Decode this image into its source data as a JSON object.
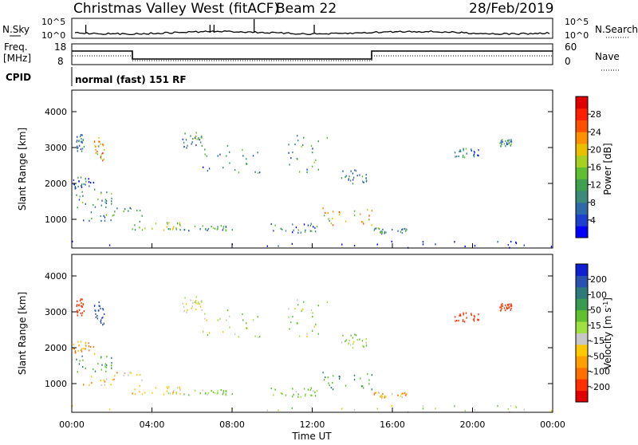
{
  "header": {
    "title": "Christmas Valley West (fitACF)",
    "beam": "Beam 22",
    "date": "28/Feb/2019"
  },
  "top_panels": {
    "nsky_label": "N.Sky",
    "nsky_ticks": [
      "10^5",
      "10^0"
    ],
    "nsearch_label": "N.Search",
    "nsearch_ticks": [
      "10^5",
      "10^0"
    ],
    "freq_label": "Freq.",
    "freq_unit": "[MHz]",
    "freq_ticks": [
      "18",
      "8"
    ],
    "nave_label": "Nave",
    "nave_ticks": [
      "60",
      "0"
    ],
    "cpid_label": "CPID",
    "cpid_value": "normal (fast) 151 RF"
  },
  "colors": {
    "power_scale": [
      "#0000ff",
      "#1f3fd0",
      "#2f6aa8",
      "#3b8a7a",
      "#3fa050",
      "#5fbf30",
      "#a8d020",
      "#e8c000",
      "#ff9000",
      "#ff5000",
      "#ff2000",
      "#e00000"
    ],
    "velocity_scale": [
      "#e00000",
      "#ff3000",
      "#ff7000",
      "#ffa000",
      "#ffc800",
      "#c8c8c8",
      "#a0e040",
      "#60c030",
      "#3a9a50",
      "#2e7a7a",
      "#2a50b0",
      "#1020d0"
    ]
  },
  "chart_data": [
    {
      "type": "heatmap",
      "panel": "power",
      "xlabel": "",
      "ylabel": "Slant Range [km]",
      "ylim": [
        200,
        4600
      ],
      "xlim_hours": [
        0,
        24
      ],
      "yticks": [
        "1000",
        "2000",
        "3000",
        "4000"
      ],
      "colorbar_label": "Power [dB]",
      "colorbar_ticks": [
        "4",
        "8",
        "12",
        "16",
        "20",
        "24",
        "28"
      ],
      "colorbar_range": [
        0,
        30
      ]
    },
    {
      "type": "heatmap",
      "panel": "velocity",
      "xlabel": "Time UT",
      "ylabel": "Slant Range [km]",
      "ylim": [
        200,
        4600
      ],
      "xlim_hours": [
        0,
        24
      ],
      "yticks": [
        "1000",
        "2000",
        "3000",
        "4000"
      ],
      "xticks": [
        "00:00",
        "04:00",
        "08:00",
        "12:00",
        "16:00",
        "20:00",
        "00:00"
      ],
      "colorbar_label": "Velocity [m s",
      "colorbar_label_sup": "-1",
      "colorbar_label_end": "]",
      "colorbar_ticks": [
        "-200",
        "-100",
        "-50",
        "-15",
        "15",
        "50",
        "100",
        "200"
      ]
    }
  ],
  "scatter_regions": [
    {
      "t0": 0.0,
      "t1": 24.0,
      "r0": 220,
      "r1": 420,
      "p": 0.55,
      "v": 0.1
    },
    {
      "t0": 0.1,
      "t1": 2.2,
      "r0": 1350,
      "r1": 1800,
      "p": 10,
      "v": 45
    },
    {
      "t0": 0.3,
      "t1": 3.5,
      "r0": 950,
      "r1": 1350,
      "p": 9,
      "v": -30
    },
    {
      "t0": 3.0,
      "t1": 5.5,
      "r0": 720,
      "r1": 950,
      "p": 14,
      "v": -25
    },
    {
      "t0": 5.5,
      "t1": 8.0,
      "r0": 700,
      "r1": 850,
      "p": 10,
      "v": 20
    },
    {
      "t0": 0.2,
      "t1": 0.6,
      "r0": 2900,
      "r1": 3400,
      "p": 6,
      "v": -150
    },
    {
      "t0": 1.1,
      "t1": 1.6,
      "r0": 2650,
      "r1": 3300,
      "p": 20,
      "v": 150
    },
    {
      "t0": 0.0,
      "t1": 1.2,
      "r0": 1850,
      "r1": 2200,
      "p": 6,
      "v": -60
    },
    {
      "t0": 5.5,
      "t1": 6.5,
      "r0": 3000,
      "r1": 3450,
      "p": 10,
      "v": -10
    },
    {
      "t0": 6.5,
      "t1": 9.5,
      "r0": 2300,
      "r1": 3100,
      "p": 8,
      "v": 5
    },
    {
      "t0": 10.8,
      "t1": 12.8,
      "r0": 2300,
      "r1": 3400,
      "p": 10,
      "v": 5
    },
    {
      "t0": 13.3,
      "t1": 14.7,
      "r0": 2000,
      "r1": 2400,
      "p": 8,
      "v": 10
    },
    {
      "t0": 9.5,
      "t1": 12.5,
      "r0": 650,
      "r1": 900,
      "p": 8,
      "v": 20
    },
    {
      "t0": 12.5,
      "t1": 15.0,
      "r0": 800,
      "r1": 1350,
      "p": 18,
      "v": 50
    },
    {
      "t0": 15.0,
      "t1": 17.0,
      "r0": 620,
      "r1": 800,
      "p": 10,
      "v": -35
    },
    {
      "t0": 19.0,
      "t1": 20.3,
      "r0": 2700,
      "r1": 3000,
      "p": 8,
      "v": -150
    },
    {
      "t0": 21.3,
      "t1": 22.0,
      "r0": 3050,
      "r1": 3250,
      "p": 8,
      "v": -150
    }
  ]
}
